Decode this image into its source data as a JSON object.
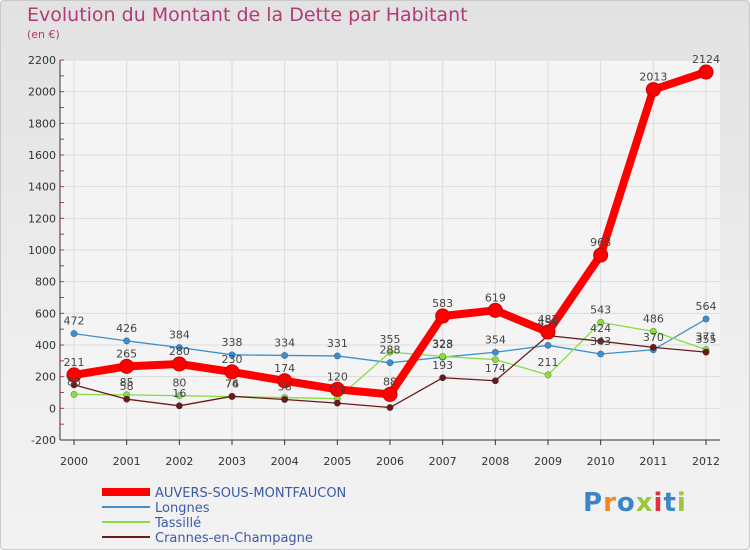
{
  "title": "Evolution du Montant de la Dette par Habitant",
  "unit_label": "(en €)",
  "chart_data": {
    "type": "line",
    "title": "Evolution du Montant de la Dette par Habitant",
    "ylabel": "(en €)",
    "ylim": [
      -200,
      2200
    ],
    "y_ticks": [
      -200,
      0,
      200,
      400,
      600,
      800,
      1000,
      1200,
      1400,
      1600,
      1800,
      2000,
      2200
    ],
    "categories": [
      "2000",
      "2001",
      "2002",
      "2003",
      "2004",
      "2005",
      "2006",
      "2007",
      "2008",
      "2009",
      "2010",
      "2011",
      "2012"
    ],
    "grid": true,
    "legend_position": "bottom-left",
    "series": [
      {
        "name": "AUVERS-SOUS-MONTFAUCON",
        "color": "#ff0000",
        "values": [
          211,
          265,
          280,
          230,
          174,
          120,
          88,
          583,
          619,
          482,
          968,
          2013,
          2124
        ]
      },
      {
        "name": "Longnes",
        "color": "#3b8fd0",
        "values": [
          472,
          426,
          384,
          338,
          334,
          331,
          288,
          323,
          354,
          398,
          343,
          370,
          564
        ]
      },
      {
        "name": "Tassillé",
        "color": "#88dd44",
        "values": [
          88,
          85,
          80,
          74,
          68,
          61,
          355,
          328,
          308,
          211,
          543,
          486,
          371
        ]
      },
      {
        "name": "Crannes-en-Champagne",
        "color": "#6b1a1a",
        "values": [
          148,
          58,
          16,
          76,
          56,
          33,
          5,
          193,
          174,
          459,
          424,
          385,
          355
        ]
      }
    ],
    "data_labels": [
      {
        "text": "211",
        "x": "2000",
        "y": 211,
        "series": 0
      },
      {
        "text": "265",
        "x": "2001",
        "y": 265,
        "series": 0
      },
      {
        "text": "280",
        "x": "2002",
        "y": 280,
        "series": 0
      },
      {
        "text": "230",
        "x": "2003",
        "y": 230,
        "series": 0
      },
      {
        "text": "174",
        "x": "2004",
        "y": 174,
        "series": 0
      },
      {
        "text": "120",
        "x": "2005",
        "y": 120,
        "series": 0
      },
      {
        "text": "88",
        "x": "2006",
        "y": 88,
        "series": 0
      },
      {
        "text": "583",
        "x": "2007",
        "y": 583,
        "series": 0
      },
      {
        "text": "619",
        "x": "2008",
        "y": 619,
        "series": 0
      },
      {
        "text": "482",
        "x": "2009",
        "y": 482,
        "series": 0
      },
      {
        "text": "968",
        "x": "2010",
        "y": 968,
        "series": 0
      },
      {
        "text": "2013",
        "x": "2011",
        "y": 2013,
        "series": 0
      },
      {
        "text": "2124",
        "x": "2012",
        "y": 2124,
        "series": 0
      },
      {
        "text": "472",
        "x": "2000",
        "y": 472,
        "series": 1
      },
      {
        "text": "426",
        "x": "2001",
        "y": 426,
        "series": 1
      },
      {
        "text": "384",
        "x": "2002",
        "y": 384,
        "series": 1
      },
      {
        "text": "338",
        "x": "2003",
        "y": 338,
        "series": 1
      },
      {
        "text": "334",
        "x": "2004",
        "y": 334,
        "series": 1
      },
      {
        "text": "331",
        "x": "2005",
        "y": 331,
        "series": 1
      },
      {
        "text": "288",
        "x": "2006",
        "y": 288,
        "series": 1
      },
      {
        "text": "323",
        "x": "2007",
        "y": 323,
        "series": 1
      },
      {
        "text": "354",
        "x": "2008",
        "y": 354,
        "series": 1
      },
      {
        "text": "343",
        "x": "2010",
        "y": 343,
        "series": 1
      },
      {
        "text": "370",
        "x": "2011",
        "y": 370,
        "series": 1
      },
      {
        "text": "564",
        "x": "2012",
        "y": 564,
        "series": 1
      },
      {
        "text": "88",
        "x": "2000",
        "y": 88,
        "series": 2
      },
      {
        "text": "85",
        "x": "2001",
        "y": 85,
        "series": 2
      },
      {
        "text": "80",
        "x": "2002",
        "y": 80,
        "series": 2
      },
      {
        "text": "74",
        "x": "2003",
        "y": 74,
        "series": 2
      },
      {
        "text": "355",
        "x": "2006",
        "y": 355,
        "series": 2
      },
      {
        "text": "328",
        "x": "2007",
        "y": 328,
        "series": 2
      },
      {
        "text": "211",
        "x": "2009",
        "y": 211,
        "series": 2
      },
      {
        "text": "543",
        "x": "2010",
        "y": 543,
        "series": 2
      },
      {
        "text": "486",
        "x": "2011",
        "y": 486,
        "series": 2
      },
      {
        "text": "371",
        "x": "2012",
        "y": 371,
        "series": 2
      },
      {
        "text": "58",
        "x": "2001",
        "y": 58,
        "series": 3
      },
      {
        "text": "16",
        "x": "2002",
        "y": 16,
        "series": 3
      },
      {
        "text": "76",
        "x": "2003",
        "y": 76,
        "series": 3
      },
      {
        "text": "56",
        "x": "2004",
        "y": 56,
        "series": 3
      },
      {
        "text": "33",
        "x": "2005",
        "y": 33,
        "series": 3
      },
      {
        "text": "193",
        "x": "2007",
        "y": 193,
        "series": 3
      },
      {
        "text": "174",
        "x": "2008",
        "y": 174,
        "series": 3
      },
      {
        "text": "459",
        "x": "2009",
        "y": 459,
        "series": 3
      },
      {
        "text": "424",
        "x": "2010",
        "y": 424,
        "series": 3
      },
      {
        "text": "355",
        "x": "2012",
        "y": 355,
        "series": 3
      }
    ]
  },
  "legend": [
    {
      "label": "AUVERS-SOUS-MONTFAUCON",
      "color": "#ff0000"
    },
    {
      "label": "Longnes",
      "color": "#3b8fd0"
    },
    {
      "label": "Tassillé",
      "color": "#88dd44"
    },
    {
      "label": "Crannes-en-Champagne",
      "color": "#6b1a1a"
    }
  ],
  "logo": {
    "text": "Proxiti",
    "letter_colors": [
      "#3a86c8",
      "#f08a1c",
      "#3a86c8",
      "#9ac83c",
      "#e62e3c",
      "#3a86c8",
      "#9ac83c"
    ]
  }
}
